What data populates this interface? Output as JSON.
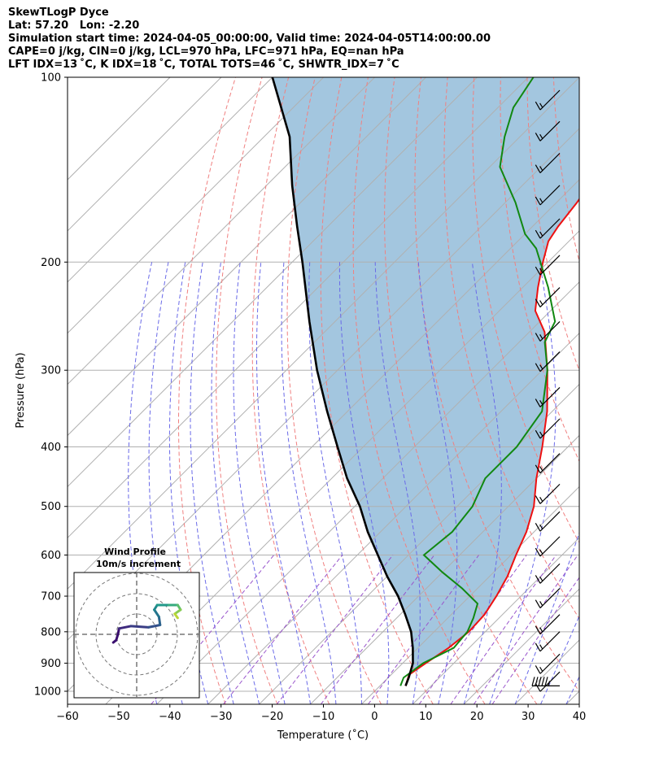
{
  "header": {
    "line1": "SkewTLogP Dyce",
    "line2": "Lat: 57.20   Lon: -2.20",
    "line3": "Simulation start time: 2024-04-05_00:00:00, Valid time: 2024-04-05T14:00:00.00",
    "line4": "CAPE=0 j/kg, CIN=0 j/kg, LCL=970 hPa, LFC=971 hPa, EQ=nan hPa",
    "line5": "LFT IDX=13 ˚C, K IDX=18 ˚C, TOTAL TOTS=46 ˚C, SHWTR_IDX=7 ˚C"
  },
  "colors": {
    "temperature": "#ee1111",
    "dewpoint": "#118811",
    "parcel": "#000000",
    "cape_fill": "#a3c6df",
    "dry_adiabat": "#f08080",
    "moist_adiabat": "#6a6ae8",
    "mixing_ratio": "#9955cc",
    "isotherm": "#b0b0b0"
  },
  "chart_data": {
    "type": "line",
    "title": "SkewTLogP Dyce",
    "xlabel": "Temperature (˚C)",
    "ylabel": "Pressure (hPa)",
    "x_ticks": [
      "−60",
      "−50",
      "−40",
      "−30",
      "−20",
      "−10",
      "0",
      "10",
      "20",
      "30",
      "40"
    ],
    "y_ticks": [
      "100",
      "200",
      "300",
      "400",
      "500",
      "600",
      "700",
      "800",
      "900",
      "1000"
    ],
    "xlim": [
      -60,
      40
    ],
    "ylim": [
      1050,
      100
    ],
    "y_scale": "log",
    "skew_degrees": 45,
    "grid": true,
    "series": [
      {
        "name": "",
        "kind": "temperature",
        "points": [
          [
            5,
            980
          ],
          [
            3.5,
            940
          ],
          [
            4.5,
            900
          ],
          [
            6,
            850
          ],
          [
            6.8,
            800
          ],
          [
            6.5,
            750
          ],
          [
            5.2,
            700
          ],
          [
            3.5,
            650
          ],
          [
            1,
            600
          ],
          [
            -1.5,
            550
          ],
          [
            -5,
            500
          ],
          [
            -10,
            450
          ],
          [
            -15,
            400
          ],
          [
            -21,
            350
          ],
          [
            -29,
            300
          ],
          [
            -37,
            260
          ],
          [
            -43,
            240
          ],
          [
            -47,
            220
          ],
          [
            -51,
            200
          ],
          [
            -54,
            185
          ],
          [
            -55,
            175
          ],
          [
            -56,
            160
          ],
          [
            -58,
            140
          ],
          [
            -60,
            125
          ],
          [
            -63,
            112
          ],
          [
            -65,
            105
          ],
          [
            -66,
            100
          ]
        ]
      },
      {
        "name": "",
        "kind": "dewpoint",
        "points": [
          [
            4,
            980
          ],
          [
            3,
            950
          ],
          [
            4,
            900
          ],
          [
            7,
            850
          ],
          [
            6.5,
            800
          ],
          [
            5,
            760
          ],
          [
            3,
            720
          ],
          [
            -3,
            680
          ],
          [
            -10,
            640
          ],
          [
            -17,
            600
          ],
          [
            -16,
            550
          ],
          [
            -17,
            500
          ],
          [
            -20,
            450
          ],
          [
            -20,
            400
          ],
          [
            -22,
            350
          ],
          [
            -29,
            300
          ],
          [
            -35,
            270
          ],
          [
            -37,
            250
          ],
          [
            -45,
            220
          ],
          [
            -55,
            190
          ],
          [
            -60,
            180
          ],
          [
            -68,
            160
          ],
          [
            -78,
            140
          ],
          [
            -83,
            125
          ],
          [
            -87,
            112
          ],
          [
            -89,
            100
          ]
        ]
      },
      {
        "name": "",
        "kind": "parcel",
        "points": [
          [
            5,
            980
          ],
          [
            4,
            950
          ],
          [
            2,
            900
          ],
          [
            -1,
            850
          ],
          [
            -4.5,
            800
          ],
          [
            -9,
            750
          ],
          [
            -14,
            700
          ],
          [
            -20,
            650
          ],
          [
            -26,
            600
          ],
          [
            -32.5,
            550
          ],
          [
            -39,
            500
          ],
          [
            -47,
            450
          ],
          [
            -55,
            400
          ],
          [
            -64,
            350
          ],
          [
            -74,
            300
          ],
          [
            -85,
            250
          ],
          [
            -98,
            200
          ],
          [
            -106,
            175
          ],
          [
            -115,
            150
          ],
          [
            -125,
            125
          ],
          [
            -140,
            100
          ]
        ]
      }
    ],
    "wind_barbs": [
      {
        "p": 980,
        "speed_kt": 55,
        "dir_deg": 270
      },
      {
        "p": 930,
        "speed_kt": 10,
        "dir_deg": 225
      },
      {
        "p": 870,
        "speed_kt": 15,
        "dir_deg": 225
      },
      {
        "p": 800,
        "speed_kt": 15,
        "dir_deg": 225
      },
      {
        "p": 750,
        "speed_kt": 15,
        "dir_deg": 225
      },
      {
        "p": 680,
        "speed_kt": 15,
        "dir_deg": 225
      },
      {
        "p": 620,
        "speed_kt": 15,
        "dir_deg": 225
      },
      {
        "p": 560,
        "speed_kt": 15,
        "dir_deg": 225
      },
      {
        "p": 510,
        "speed_kt": 15,
        "dir_deg": 225
      },
      {
        "p": 460,
        "speed_kt": 15,
        "dir_deg": 225
      },
      {
        "p": 410,
        "speed_kt": 15,
        "dir_deg": 225
      },
      {
        "p": 360,
        "speed_kt": 15,
        "dir_deg": 225
      },
      {
        "p": 320,
        "speed_kt": 15,
        "dir_deg": 225
      },
      {
        "p": 280,
        "speed_kt": 15,
        "dir_deg": 225
      },
      {
        "p": 250,
        "speed_kt": 15,
        "dir_deg": 225
      },
      {
        "p": 220,
        "speed_kt": 15,
        "dir_deg": 225
      },
      {
        "p": 195,
        "speed_kt": 15,
        "dir_deg": 225
      },
      {
        "p": 170,
        "speed_kt": 15,
        "dir_deg": 225
      },
      {
        "p": 150,
        "speed_kt": 15,
        "dir_deg": 225
      },
      {
        "p": 133,
        "speed_kt": 15,
        "dir_deg": 225
      },
      {
        "p": 118,
        "speed_kt": 15,
        "dir_deg": 225
      },
      {
        "p": 105,
        "speed_kt": 15,
        "dir_deg": 225
      }
    ],
    "inset": {
      "title": "Wind Profile",
      "subtitle": "10m/s increment",
      "rings": 3,
      "hodograph": [
        [
          -4,
          -1.4
        ],
        [
          -3.5,
          -1
        ],
        [
          -3.2,
          0
        ],
        [
          -3,
          1
        ],
        [
          -1,
          1.4
        ],
        [
          2,
          1.2
        ],
        [
          4,
          1.6
        ],
        [
          3.8,
          3
        ],
        [
          3,
          4.2
        ],
        [
          3.5,
          5
        ],
        [
          5.5,
          5
        ],
        [
          7,
          5
        ],
        [
          7.5,
          4.2
        ],
        [
          6.5,
          3.5
        ],
        [
          7,
          2.8
        ]
      ]
    }
  }
}
